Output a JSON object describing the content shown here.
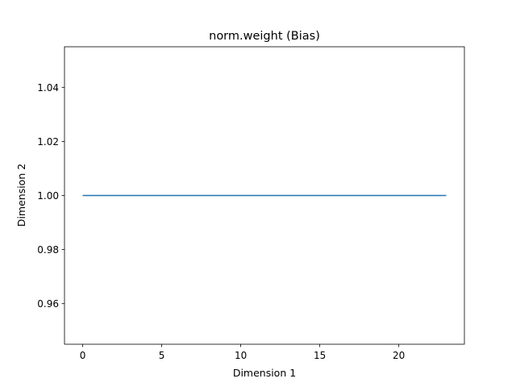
{
  "chart_data": {
    "type": "line",
    "title": "norm.weight (Bias)",
    "xlabel": "Dimension 1",
    "ylabel": "Dimension 2",
    "xlim": [
      -1.15,
      24.15
    ],
    "ylim": [
      0.945,
      1.055
    ],
    "xticks": [
      0,
      5,
      10,
      15,
      20
    ],
    "yticks": [
      0.96,
      0.98,
      1.0,
      1.02,
      1.04
    ],
    "xtick_labels": [
      "0",
      "5",
      "10",
      "15",
      "20"
    ],
    "ytick_labels": [
      "0.96",
      "0.98",
      "1.00",
      "1.02",
      "1.04"
    ],
    "grid": false,
    "series": [
      {
        "color": "#1f77b4",
        "x": [
          0,
          1,
          2,
          3,
          4,
          5,
          6,
          7,
          8,
          9,
          10,
          11,
          12,
          13,
          14,
          15,
          16,
          17,
          18,
          19,
          20,
          21,
          22,
          23
        ],
        "y": [
          1,
          1,
          1,
          1,
          1,
          1,
          1,
          1,
          1,
          1,
          1,
          1,
          1,
          1,
          1,
          1,
          1,
          1,
          1,
          1,
          1,
          1,
          1,
          1
        ]
      }
    ]
  }
}
